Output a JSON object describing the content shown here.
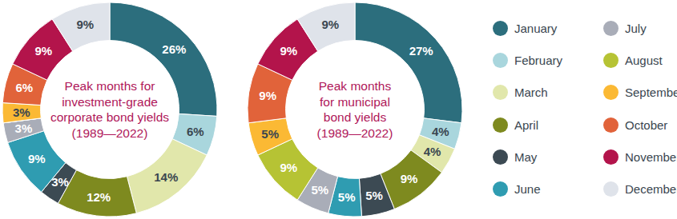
{
  "chart_data": [
    {
      "type": "pie",
      "title": [
        "Peak months for",
        "investment-grade",
        "corporate bond yields",
        "(1989—2022)"
      ],
      "categories": [
        "January",
        "February",
        "March",
        "April",
        "May",
        "June",
        "July",
        "August",
        "September",
        "October",
        "November",
        "December"
      ],
      "values": [
        26,
        6,
        14,
        12,
        3,
        9,
        3,
        null,
        3,
        6,
        9,
        9
      ],
      "value_labels": [
        "26%",
        "6%",
        "14%",
        "12%",
        "3%",
        "9%",
        "3%",
        null,
        "3%",
        "6%",
        "9%",
        "9%"
      ],
      "colors": [
        "#2c6e7d",
        "#a9d6dd",
        "#e1e7ab",
        "#7e8a1f",
        "#3c4a53",
        "#2f9cb1",
        "#a9adb8",
        "#b6c334",
        "#fbb934",
        "#e1633a",
        "#b3144b",
        "#dfe3ea"
      ],
      "data_labels": true,
      "legend": "right"
    },
    {
      "type": "pie",
      "title": [
        "Peak months",
        "for municipal",
        "bond yields",
        "(1989—2022)"
      ],
      "categories": [
        "January",
        "February",
        "March",
        "April",
        "May",
        "June",
        "July",
        "August",
        "September",
        "October",
        "November",
        "December"
      ],
      "values": [
        27,
        4,
        4,
        9,
        5,
        5,
        5,
        9,
        5,
        9,
        9,
        9
      ],
      "value_labels": [
        "27%",
        "4%",
        "4%",
        "9%",
        "5%",
        "5%",
        "5%",
        "9%",
        "5%",
        "9%",
        "9%",
        "9%"
      ],
      "colors": [
        "#2c6e7d",
        "#a9d6dd",
        "#e1e7ab",
        "#7e8a1f",
        "#3c4a53",
        "#2f9cb1",
        "#a9adb8",
        "#b6c334",
        "#fbb934",
        "#e1633a",
        "#b3144b",
        "#dfe3ea"
      ],
      "data_labels": true
    }
  ]
}
